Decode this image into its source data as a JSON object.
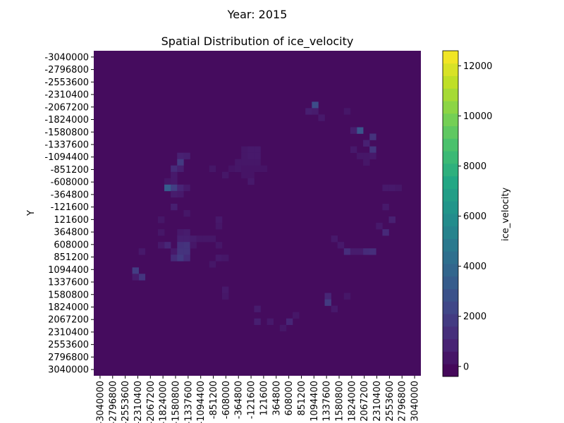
{
  "chart_data": {
    "type": "heatmap",
    "suptitle": "Year: 2015",
    "title": "Spatial Distribution of ice_velocity",
    "xlabel": "",
    "ylabel": "Y",
    "colorbar_label": "ice_velocity",
    "colormap": "viridis",
    "vmin": -400,
    "vmax": 12600,
    "colorbar_ticks": [
      0,
      2000,
      4000,
      6000,
      8000,
      10000,
      12000
    ],
    "colorbar_tick_labels": [
      "0",
      "2000",
      "4000",
      "6000",
      "8000",
      "10000",
      "12000"
    ],
    "grid_size": 51,
    "x_tick_labels": [
      "-3040000",
      "-2796800",
      "-2553600",
      "-2310400",
      "-2067200",
      "-1824000",
      "-1580800",
      "-1337600",
      "-1094400",
      "-851200",
      "-608000",
      "-364800",
      "-121600",
      "121600",
      "364800",
      "608000",
      "851200",
      "1094400",
      "1337600",
      "1580800",
      "1824000",
      "2067200",
      "2310400",
      "2553600",
      "2796800",
      "3040000"
    ],
    "y_tick_labels": [
      "-3040000",
      "-2796800",
      "-2553600",
      "-2310400",
      "-2067200",
      "-1824000",
      "-1580800",
      "-1337600",
      "-1094400",
      "-851200",
      "-608000",
      "-364800",
      "-121600",
      "121600",
      "364800",
      "608000",
      "851200",
      "1094400",
      "1337600",
      "1580800",
      "1824000",
      "2067200",
      "2310400",
      "2553600",
      "2796800",
      "3040000"
    ],
    "background_value": 0,
    "cells": [
      [
        34,
        8,
        2600
      ],
      [
        33,
        9,
        700
      ],
      [
        34,
        9,
        600
      ],
      [
        35,
        10,
        500
      ],
      [
        39,
        9,
        400
      ],
      [
        41,
        12,
        3000
      ],
      [
        43,
        13,
        1500
      ],
      [
        40,
        12,
        700
      ],
      [
        42,
        14,
        800
      ],
      [
        43,
        15,
        1600
      ],
      [
        40,
        15,
        500
      ],
      [
        41,
        16,
        400
      ],
      [
        42,
        16,
        400
      ],
      [
        43,
        16,
        500
      ],
      [
        42,
        17,
        400
      ],
      [
        23,
        15,
        400
      ],
      [
        24,
        15,
        500
      ],
      [
        25,
        15,
        500
      ],
      [
        23,
        16,
        400
      ],
      [
        24,
        16,
        500
      ],
      [
        25,
        16,
        500
      ],
      [
        23,
        17,
        400
      ],
      [
        24,
        17,
        400
      ],
      [
        25,
        17,
        400
      ],
      [
        22,
        17,
        400
      ],
      [
        21,
        18,
        300
      ],
      [
        22,
        18,
        400
      ],
      [
        23,
        18,
        300
      ],
      [
        24,
        18,
        300
      ],
      [
        25,
        18,
        300
      ],
      [
        26,
        18,
        300
      ],
      [
        24,
        19,
        300
      ],
      [
        23,
        19,
        300
      ],
      [
        13,
        16,
        800
      ],
      [
        14,
        16,
        700
      ],
      [
        13,
        17,
        1800
      ],
      [
        12,
        18,
        1200
      ],
      [
        13,
        18,
        700
      ],
      [
        12,
        19,
        500
      ],
      [
        11,
        20,
        400
      ],
      [
        12,
        20,
        500
      ],
      [
        12,
        21,
        500
      ],
      [
        11,
        21,
        3400
      ],
      [
        12,
        21,
        2000
      ],
      [
        13,
        21,
        900
      ],
      [
        14,
        21,
        500
      ],
      [
        12,
        22,
        600
      ],
      [
        13,
        22,
        500
      ],
      [
        12,
        24,
        700
      ],
      [
        18,
        18,
        400
      ],
      [
        20,
        19,
        400
      ],
      [
        24,
        20,
        500
      ],
      [
        45,
        21,
        500
      ],
      [
        46,
        21,
        500
      ],
      [
        47,
        21,
        400
      ],
      [
        45,
        24,
        500
      ],
      [
        46,
        26,
        800
      ],
      [
        44,
        27,
        500
      ],
      [
        45,
        28,
        1100
      ],
      [
        10,
        26,
        400
      ],
      [
        14,
        25,
        400
      ],
      [
        19,
        26,
        500
      ],
      [
        19,
        27,
        400
      ],
      [
        10,
        28,
        400
      ],
      [
        13,
        28,
        500
      ],
      [
        14,
        28,
        600
      ],
      [
        13,
        29,
        700
      ],
      [
        14,
        29,
        700
      ],
      [
        15,
        29,
        600
      ],
      [
        16,
        29,
        400
      ],
      [
        17,
        29,
        400
      ],
      [
        18,
        29,
        400
      ],
      [
        11,
        30,
        1000
      ],
      [
        10,
        30,
        500
      ],
      [
        13,
        30,
        1400
      ],
      [
        14,
        30,
        1500
      ],
      [
        15,
        30,
        400
      ],
      [
        19,
        30,
        400
      ],
      [
        7,
        31,
        500
      ],
      [
        12,
        31,
        500
      ],
      [
        13,
        31,
        1500
      ],
      [
        14,
        31,
        1500
      ],
      [
        12,
        32,
        1200
      ],
      [
        13,
        32,
        1800
      ],
      [
        14,
        32,
        1200
      ],
      [
        19,
        32,
        500
      ],
      [
        20,
        32,
        400
      ],
      [
        18,
        33,
        400
      ],
      [
        37,
        29,
        500
      ],
      [
        38,
        30,
        500
      ],
      [
        39,
        31,
        1300
      ],
      [
        40,
        31,
        600
      ],
      [
        41,
        31,
        600
      ],
      [
        42,
        31,
        1200
      ],
      [
        43,
        31,
        1300
      ],
      [
        6,
        34,
        1900
      ],
      [
        7,
        35,
        1600
      ],
      [
        6,
        35,
        600
      ],
      [
        20,
        37,
        500
      ],
      [
        20,
        38,
        400
      ],
      [
        36,
        38,
        1000
      ],
      [
        36,
        39,
        1800
      ],
      [
        37,
        40,
        500
      ],
      [
        25,
        40,
        600
      ],
      [
        25,
        42,
        700
      ],
      [
        27,
        42,
        500
      ],
      [
        30,
        42,
        1000
      ],
      [
        31,
        41,
        400
      ],
      [
        29,
        43,
        400
      ],
      [
        39,
        38,
        400
      ]
    ]
  }
}
